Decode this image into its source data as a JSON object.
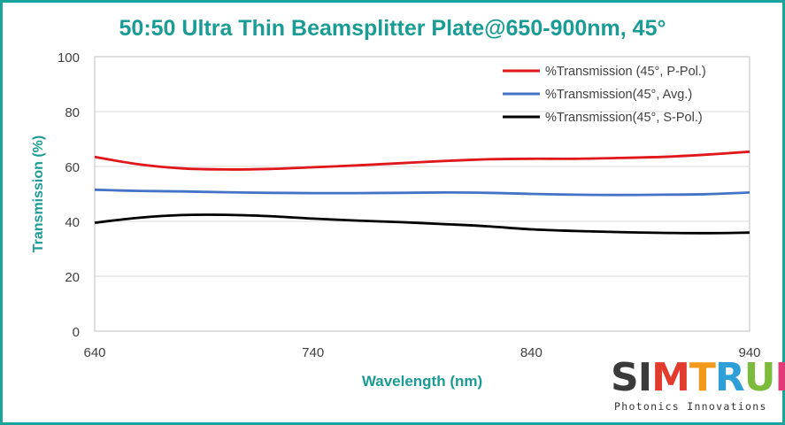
{
  "chart_data": {
    "type": "line",
    "title": "50:50 Ultra Thin Beamsplitter Plate@650-900nm, 45°",
    "xlabel": "Wavelength (nm)",
    "ylabel": "Transmission (%)",
    "xlim": [
      640,
      940
    ],
    "ylim": [
      0,
      100
    ],
    "xticks": [
      "640",
      "740",
      "840",
      "940"
    ],
    "yticks": [
      "0",
      "20",
      "40",
      "60",
      "80",
      "100"
    ],
    "grid": "horizontal",
    "legend_position": "top-right",
    "series": [
      {
        "name": "%Transmission (45°, P-Pol.)",
        "color": "#e0161a",
        "x": [
          640,
          660,
          680,
          700,
          720,
          740,
          760,
          780,
          800,
          820,
          840,
          860,
          880,
          900,
          920,
          940
        ],
        "y": [
          63.5,
          60.8,
          59.3,
          58.9,
          59.1,
          59.7,
          60.4,
          61.2,
          62.0,
          62.6,
          62.8,
          62.8,
          63.1,
          63.5,
          64.3,
          65.4
        ]
      },
      {
        "name": "%Transmission(45°, Avg.)",
        "color": "#4472c4",
        "x": [
          640,
          660,
          680,
          700,
          720,
          740,
          760,
          780,
          800,
          820,
          840,
          860,
          880,
          900,
          920,
          940
        ],
        "y": [
          51.5,
          51.1,
          50.9,
          50.6,
          50.4,
          50.3,
          50.3,
          50.4,
          50.5,
          50.4,
          50.0,
          49.7,
          49.6,
          49.7,
          49.9,
          50.5
        ]
      },
      {
        "name": "%Transmission(45°, S-Pol.)",
        "color": "#000000",
        "x": [
          640,
          660,
          680,
          700,
          720,
          740,
          760,
          780,
          800,
          820,
          840,
          860,
          880,
          900,
          920,
          940
        ],
        "y": [
          39.5,
          41.3,
          42.3,
          42.4,
          41.9,
          41.0,
          40.3,
          39.7,
          39.0,
          38.2,
          37.1,
          36.5,
          36.1,
          35.8,
          35.7,
          35.9
        ]
      }
    ]
  },
  "logo": {
    "letters": [
      "S",
      "I",
      "M",
      "T",
      "R",
      "U",
      "M"
    ],
    "tagline": "Photonics Innovations"
  }
}
